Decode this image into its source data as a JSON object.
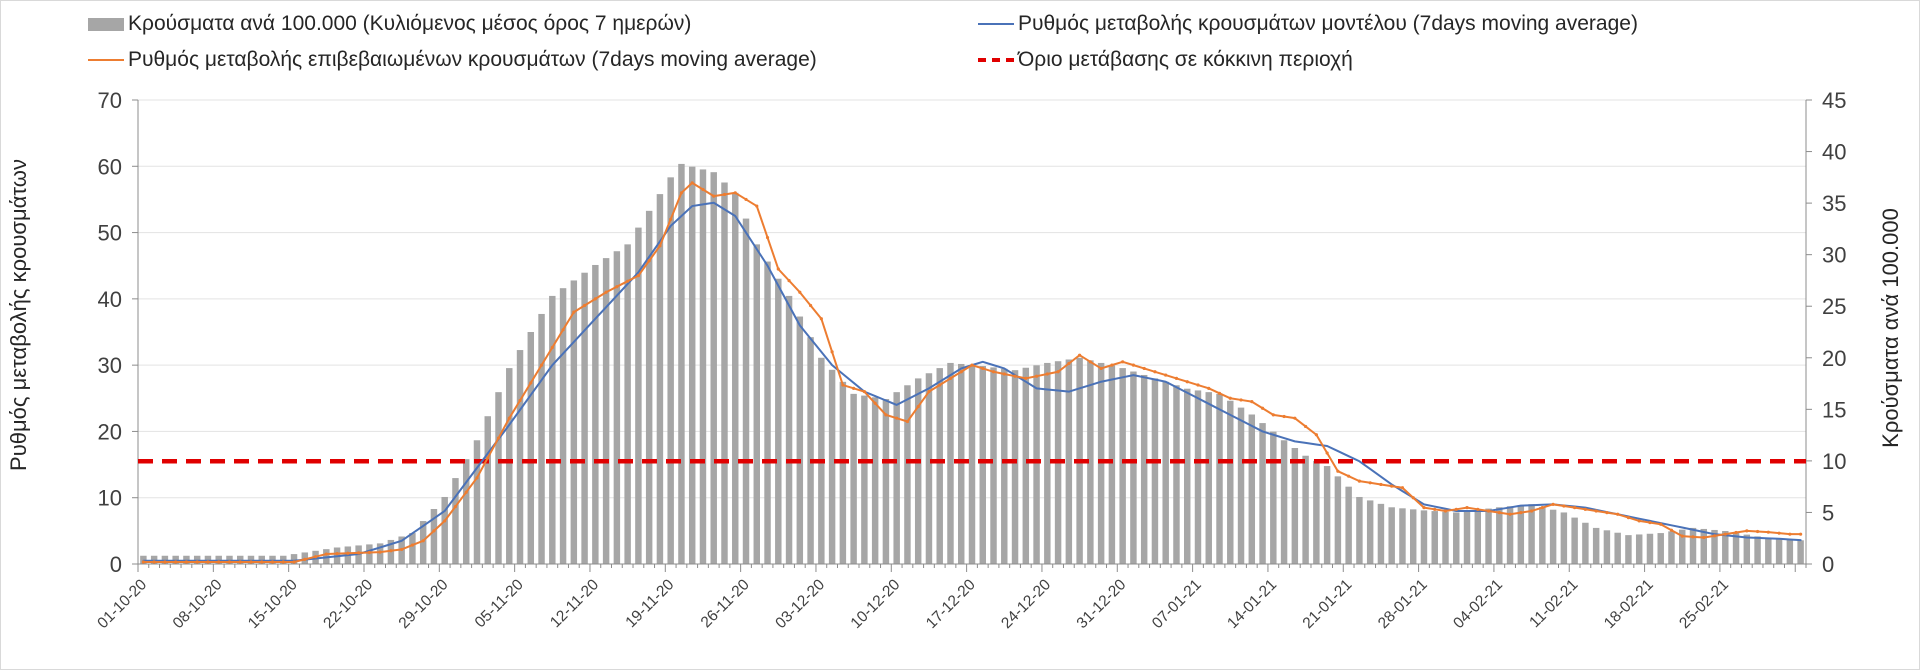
{
  "chart_data": {
    "type": "bar",
    "legend": [
      {
        "id": "bars",
        "label": "Κρούσματα ανά 100.000 (Κυλιόμενος μέσος όρος 7 ημερών)",
        "color": "#a6a6a6"
      },
      {
        "id": "model",
        "label": "Ρυθμός μεταβολής κρουσμάτων μοντέλου (7days moving average)",
        "color": "#4a72b8"
      },
      {
        "id": "confirmed",
        "label": "Ρυθμός μεταβολής επιβεβαιωμένων κρουσμάτων (7days moving average)",
        "color": "#ed7d31"
      },
      {
        "id": "threshold",
        "label": "Όριο μετάβασης σε κόκκινη περιοχή",
        "color": "#e00000"
      }
    ],
    "legend_position": "top",
    "ylabel_left": "Ρυθμός μεταβολής κρουσμάτων",
    "ylabel_right": "Κρούσματα ανά 100.000",
    "ylim_left": [
      0,
      70
    ],
    "ylim_right": [
      0,
      45
    ],
    "yticks_left": [
      "0",
      "10",
      "20",
      "30",
      "40",
      "50",
      "60",
      "70"
    ],
    "yticks_right": [
      "0",
      "5",
      "10",
      "15",
      "20",
      "25",
      "30",
      "35",
      "40",
      "45"
    ],
    "grid": true,
    "x_tick_labels": [
      "01-10-20",
      "08-10-20",
      "15-10-20",
      "22-10-20",
      "29-10-20",
      "05-11-20",
      "12-11-20",
      "19-11-20",
      "26-11-20",
      "03-12-20",
      "10-12-20",
      "17-12-20",
      "24-12-20",
      "31-12-20",
      "07-01-21",
      "14-01-21",
      "21-01-21",
      "28-01-21",
      "04-02-21",
      "11-02-21",
      "18-02-21",
      "25-02-21"
    ],
    "days": 155,
    "bars_axis": "right",
    "bars_keypoints": [
      [
        0,
        0.8
      ],
      [
        13,
        0.8
      ],
      [
        18,
        1.6
      ],
      [
        22,
        2.0
      ],
      [
        25,
        3.0
      ],
      [
        28,
        6.5
      ],
      [
        31,
        12.0
      ],
      [
        34,
        19.0
      ],
      [
        38,
        26.0
      ],
      [
        42,
        29.0
      ],
      [
        45,
        31.0
      ],
      [
        49,
        37.5
      ],
      [
        50,
        38.8
      ],
      [
        53,
        38.0
      ],
      [
        55,
        36.0
      ],
      [
        57,
        31.0
      ],
      [
        60,
        26.0
      ],
      [
        63,
        20.0
      ],
      [
        66,
        16.5
      ],
      [
        69,
        16.0
      ],
      [
        72,
        18.0
      ],
      [
        75,
        19.5
      ],
      [
        78,
        19.2
      ],
      [
        81,
        18.8
      ],
      [
        84,
        19.5
      ],
      [
        87,
        20.0
      ],
      [
        91,
        19.0
      ],
      [
        94,
        18.0
      ],
      [
        97,
        17.0
      ],
      [
        100,
        16.5
      ],
      [
        103,
        14.5
      ],
      [
        106,
        12.0
      ],
      [
        108,
        10.5
      ],
      [
        110,
        9.5
      ],
      [
        113,
        6.5
      ],
      [
        116,
        5.5
      ],
      [
        119,
        5.2
      ],
      [
        122,
        5.0
      ],
      [
        126,
        5.5
      ],
      [
        129,
        5.8
      ],
      [
        132,
        5.0
      ],
      [
        135,
        3.5
      ],
      [
        138,
        2.8
      ],
      [
        141,
        3.0
      ],
      [
        144,
        3.5
      ],
      [
        147,
        3.2
      ],
      [
        151,
        2.5
      ],
      [
        154,
        2.3
      ]
    ],
    "model_axis": "left",
    "model_keypoints": [
      [
        0,
        0.5
      ],
      [
        14,
        0.5
      ],
      [
        20,
        1.5
      ],
      [
        24,
        3.5
      ],
      [
        28,
        8.0
      ],
      [
        31,
        14.5
      ],
      [
        34,
        21.0
      ],
      [
        38,
        30.0
      ],
      [
        42,
        37.0
      ],
      [
        46,
        44.0
      ],
      [
        49,
        51.0
      ],
      [
        51,
        54.0
      ],
      [
        53,
        54.5
      ],
      [
        55,
        52.5
      ],
      [
        58,
        45.0
      ],
      [
        61,
        36.0
      ],
      [
        64,
        30.0
      ],
      [
        67,
        26.0
      ],
      [
        70,
        24.0
      ],
      [
        73,
        26.5
      ],
      [
        76,
        29.5
      ],
      [
        78,
        30.5
      ],
      [
        80,
        29.5
      ],
      [
        83,
        26.5
      ],
      [
        86,
        26.0
      ],
      [
        89,
        27.5
      ],
      [
        92,
        28.5
      ],
      [
        95,
        27.5
      ],
      [
        98,
        25.0
      ],
      [
        101,
        22.5
      ],
      [
        104,
        20.0
      ],
      [
        107,
        18.5
      ],
      [
        110,
        17.8
      ],
      [
        113,
        15.5
      ],
      [
        116,
        12.0
      ],
      [
        119,
        9.0
      ],
      [
        122,
        8.0
      ],
      [
        125,
        8.0
      ],
      [
        128,
        8.8
      ],
      [
        131,
        9.0
      ],
      [
        134,
        8.5
      ],
      [
        137,
        7.5
      ],
      [
        140,
        6.5
      ],
      [
        143,
        5.5
      ],
      [
        146,
        4.5
      ],
      [
        149,
        4.0
      ],
      [
        152,
        3.8
      ],
      [
        154,
        3.6
      ]
    ],
    "confirmed_axis": "left",
    "confirmed_keypoints": [
      [
        0,
        0.3
      ],
      [
        14,
        0.3
      ],
      [
        17,
        1.5
      ],
      [
        22,
        1.8
      ],
      [
        24,
        2.2
      ],
      [
        26,
        3.5
      ],
      [
        28,
        6.5
      ],
      [
        31,
        13.0
      ],
      [
        34,
        22.0
      ],
      [
        37,
        30.0
      ],
      [
        40,
        38.0
      ],
      [
        43,
        41.0
      ],
      [
        46,
        43.5
      ],
      [
        48,
        48.0
      ],
      [
        50,
        56.0
      ],
      [
        51,
        57.5
      ],
      [
        53,
        55.5
      ],
      [
        55,
        56.0
      ],
      [
        57,
        54.0
      ],
      [
        59,
        44.5
      ],
      [
        61,
        41.0
      ],
      [
        63,
        37.0
      ],
      [
        65,
        27.0
      ],
      [
        67,
        26.0
      ],
      [
        69,
        22.5
      ],
      [
        71,
        21.5
      ],
      [
        73,
        26.0
      ],
      [
        75,
        28.0
      ],
      [
        77,
        30.0
      ],
      [
        79,
        29.0
      ],
      [
        82,
        28.0
      ],
      [
        85,
        29.0
      ],
      [
        87,
        31.5
      ],
      [
        89,
        29.5
      ],
      [
        91,
        30.5
      ],
      [
        94,
        29.0
      ],
      [
        97,
        27.5
      ],
      [
        99,
        26.5
      ],
      [
        101,
        25.0
      ],
      [
        103,
        24.5
      ],
      [
        105,
        22.5
      ],
      [
        107,
        22.0
      ],
      [
        109,
        19.5
      ],
      [
        111,
        14.0
      ],
      [
        113,
        12.5
      ],
      [
        115,
        12.0
      ],
      [
        117,
        11.5
      ],
      [
        119,
        8.5
      ],
      [
        121,
        8.0
      ],
      [
        123,
        8.5
      ],
      [
        125,
        8.0
      ],
      [
        127,
        7.5
      ],
      [
        129,
        8.0
      ],
      [
        131,
        9.0
      ],
      [
        133,
        8.5
      ],
      [
        135,
        8.0
      ],
      [
        137,
        7.5
      ],
      [
        139,
        6.5
      ],
      [
        141,
        6.0
      ],
      [
        143,
        4.2
      ],
      [
        145,
        4.0
      ],
      [
        147,
        4.5
      ],
      [
        149,
        5.0
      ],
      [
        151,
        4.8
      ],
      [
        153,
        4.5
      ],
      [
        154,
        4.5
      ]
    ],
    "threshold_axis": "left",
    "threshold_value": 15.5
  }
}
